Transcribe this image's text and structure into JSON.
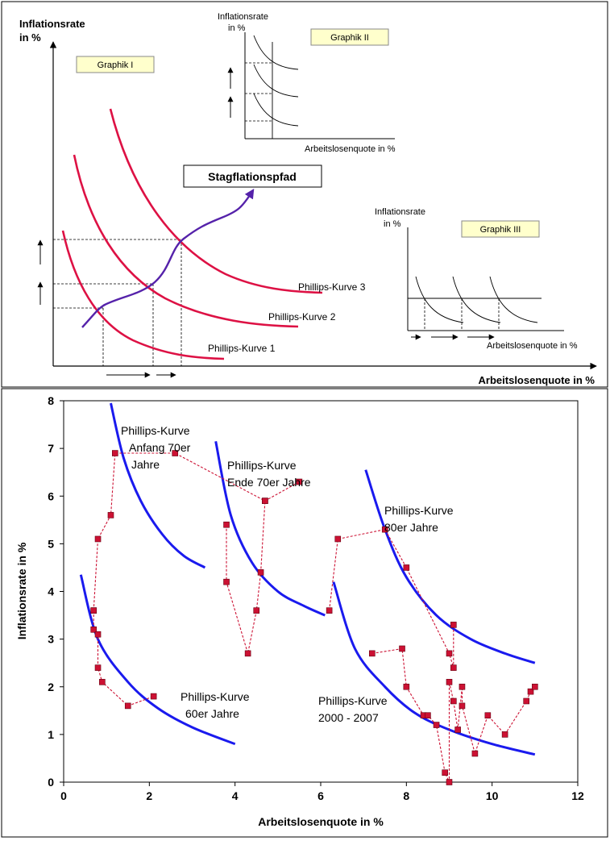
{
  "top_panel": {
    "y_label_line1": "Inflationsrate",
    "y_label_line2": "in %",
    "x_label": "Arbeitslosenquote in %",
    "graphik_1_label": "Graphik I",
    "stagflation_label": "Stagflationspfad",
    "curve_labels": [
      "Phillips-Kurve 1",
      "Phillips-Kurve 2",
      "Phillips-Kurve 3"
    ],
    "inset_2": {
      "label": "Graphik II",
      "y_label_line1": "Inflationsrate",
      "y_label_line2": "in %",
      "x_label": "Arbeitslosenquote in %"
    },
    "inset_3": {
      "label": "Graphik III",
      "y_label_line1": "Inflationsrate",
      "y_label_line2": "in %",
      "x_label": "Arbeitslosenquote in %"
    },
    "colors": {
      "phillips_curve": "#dd1144",
      "stagflation_path": "#5522aa",
      "label_box": "#ffffcc"
    }
  },
  "chart_data": {
    "type": "scatter",
    "xlabel": "Arbeitslosenquote in %",
    "ylabel": "Inflationsrate in %",
    "xlim": [
      0,
      12
    ],
    "ylim": [
      0,
      8
    ],
    "x_ticks": [
      0,
      2,
      4,
      6,
      8,
      10,
      12
    ],
    "y_ticks": [
      0,
      1,
      2,
      3,
      4,
      5,
      6,
      7,
      8
    ],
    "grid": false,
    "curve_color": "#1a1aee",
    "marker_color": "#cc1133",
    "phillips_curves": [
      {
        "label": [
          "Phillips-Kurve",
          "60er Jahre"
        ],
        "x": [
          0.4,
          0.8,
          1.5,
          2.2,
          3.0,
          4.0
        ],
        "y": [
          4.35,
          3.0,
          2.1,
          1.55,
          1.15,
          0.8
        ]
      },
      {
        "label": [
          "Phillips-Kurve",
          "Anfang 70er",
          "Jahre"
        ],
        "x": [
          1.1,
          1.4,
          1.8,
          2.3,
          2.8,
          3.3
        ],
        "y": [
          7.95,
          6.8,
          5.9,
          5.2,
          4.75,
          4.5
        ]
      },
      {
        "label": [
          "Phillips-Kurve",
          "Ende 70er Jahre"
        ],
        "x": [
          3.55,
          3.9,
          4.4,
          5.0,
          5.6,
          6.1
        ],
        "y": [
          7.15,
          5.6,
          4.6,
          4.0,
          3.7,
          3.5
        ]
      },
      {
        "label": [
          "Phillips-Kurve",
          "80er Jahre"
        ],
        "x": [
          7.05,
          7.5,
          8.0,
          8.7,
          9.5,
          10.3,
          11.0
        ],
        "y": [
          6.55,
          5.3,
          4.3,
          3.5,
          3.0,
          2.7,
          2.5
        ]
      },
      {
        "label": [
          "Phillips-Kurve",
          "2000 - 2007"
        ],
        "x": [
          6.3,
          6.8,
          7.5,
          8.2,
          9.0,
          10.0,
          11.0
        ],
        "y": [
          4.2,
          2.8,
          2.0,
          1.45,
          1.1,
          0.8,
          0.58
        ]
      }
    ],
    "series": [
      {
        "x": [
          0.7,
          0.7,
          0.8,
          0.8,
          0.9,
          1.5,
          2.1
        ],
        "y": [
          3.6,
          3.2,
          3.1,
          2.4,
          2.1,
          1.6,
          1.8
        ]
      },
      {
        "x": [
          0.7,
          0.8,
          1.1,
          1.2,
          2.6,
          4.7,
          5.5
        ],
        "y": [
          3.6,
          5.1,
          5.6,
          6.9,
          6.9,
          5.9,
          6.3
        ]
      },
      {
        "x": [
          3.8,
          3.8,
          4.3,
          4.5,
          4.6,
          4.7
        ],
        "y": [
          5.4,
          4.2,
          2.7,
          3.6,
          4.4,
          5.9
        ]
      },
      {
        "x": [
          6.2,
          6.4,
          7.5,
          8.0,
          9.0,
          9.1,
          9.1
        ],
        "y": [
          3.6,
          5.1,
          5.3,
          4.5,
          2.7,
          2.4,
          3.3
        ]
      },
      {
        "x": [
          7.2,
          7.9,
          8.0,
          8.4,
          8.5,
          8.7,
          8.9,
          9.0,
          9.0,
          9.1,
          9.2,
          9.3,
          9.3,
          9.6,
          9.9,
          10.3,
          10.8,
          10.9,
          11.0
        ],
        "y": [
          2.7,
          2.8,
          2.0,
          1.4,
          1.4,
          1.2,
          0.2,
          0.0,
          2.1,
          1.7,
          1.1,
          2.0,
          1.6,
          0.6,
          1.4,
          1.0,
          1.7,
          1.9,
          2.0
        ]
      }
    ]
  }
}
